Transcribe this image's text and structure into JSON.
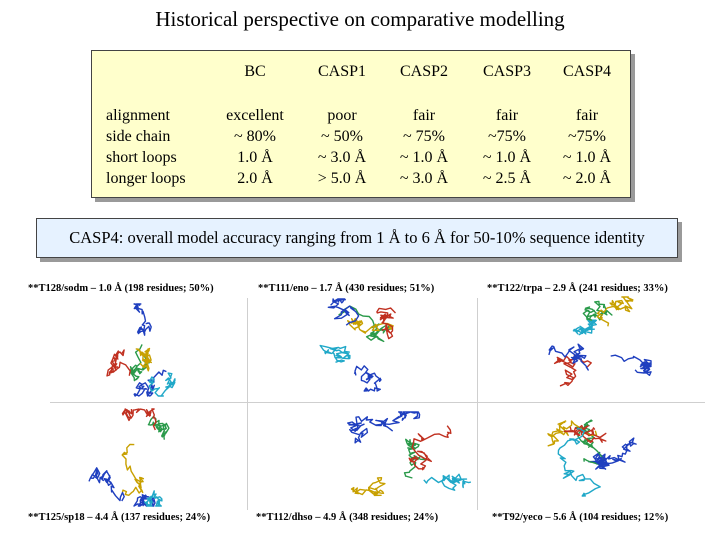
{
  "title": "Historical perspective on comparative modelling",
  "table": {
    "columns": [
      "BC",
      "CASP1",
      "CASP2",
      "CASP3",
      "CASP4"
    ],
    "row_labels": [
      "alignment",
      "side chain",
      "short loops",
      "longer loops"
    ],
    "values": {
      "BC": [
        "excellent",
        "~ 80%",
        "1.0 Å",
        "2.0 Å"
      ],
      "CASP1": [
        "poor",
        "~ 50%",
        "~ 3.0 Å",
        "> 5.0 Å"
      ],
      "CASP2": [
        "fair",
        "~ 75%",
        "~ 1.0 Å",
        "~ 3.0 Å"
      ],
      "CASP3": [
        "fair",
        "~75%",
        "~ 1.0 Å",
        "~ 2.5 Å"
      ],
      "CASP4": [
        "fair",
        "~75%",
        "~ 1.0 Å",
        "~ 2.0 Å"
      ]
    }
  },
  "summary": "CASP4: overall model accuracy ranging from 1 Å to 6 Å for 50-10% sequence identity",
  "captions": {
    "top_left": "**T128/sodm – 1.0 Å (198 residues; 50%)",
    "top_mid": "**T111/eno – 1.7 Å (430 residues; 51%)",
    "top_right": "**T122/trpa – 2.9 Å (241 residues; 33%)",
    "bot_left": "**T125/sp18 – 4.4 Å (137 residues; 24%)",
    "bot_mid": "**T112/dhso – 4.9 Å (348 residues; 24%)",
    "bot_right": "**T92/yeco – 5.6 Å (104 residues; 12%)"
  },
  "colors": {
    "table_bg": "#ffffcc",
    "summary_bg": "#e6f2ff",
    "model": "#1f3fbf",
    "experiment": "#2a9a4a",
    "accent1": "#c8a000",
    "accent2": "#c03020",
    "accent3": "#20a8c8"
  }
}
